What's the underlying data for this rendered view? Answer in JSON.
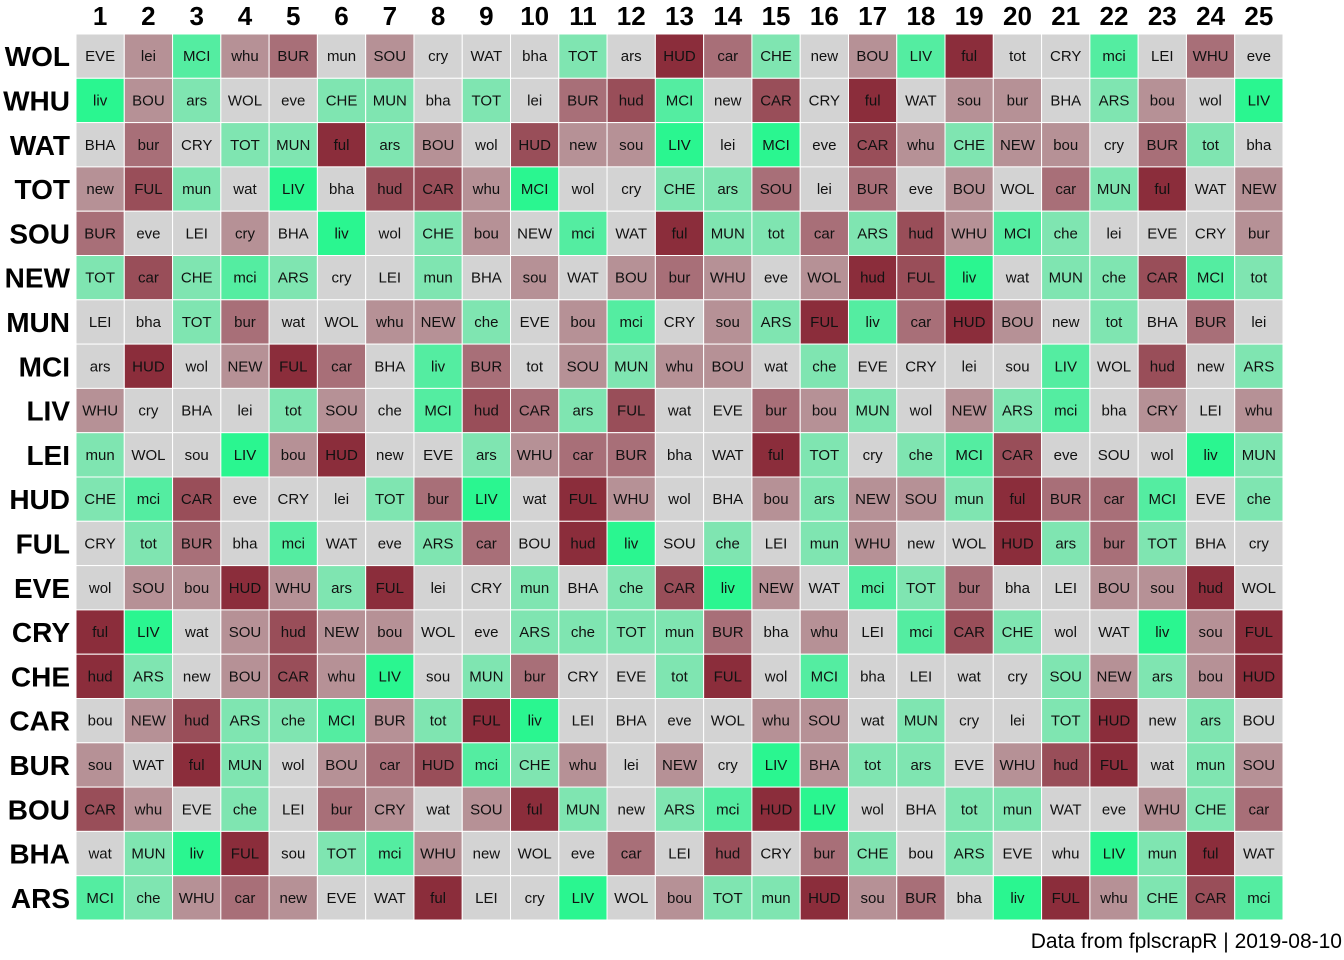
{
  "chart_data": {
    "type": "heatmap",
    "columns": [
      "1",
      "2",
      "3",
      "4",
      "5",
      "6",
      "7",
      "8",
      "9",
      "10",
      "11",
      "12",
      "13",
      "14",
      "15",
      "16",
      "17",
      "18",
      "19",
      "20",
      "21",
      "22",
      "23",
      "24",
      "25"
    ],
    "rows": [
      {
        "team": "WOL",
        "fixtures": [
          "EVE",
          "lei",
          "MCI",
          "whu",
          "BUR",
          "mun",
          "SOU",
          "cry",
          "WAT",
          "bha",
          "TOT",
          "ars",
          "HUD",
          "car",
          "CHE",
          "new",
          "BOU",
          "LIV",
          "ful",
          "tot",
          "CRY",
          "mci",
          "LEI",
          "WHU",
          "eve"
        ],
        "difficulty": [
          0,
          -2,
          3,
          -2,
          -3,
          0,
          -2,
          0,
          0,
          0,
          2,
          0,
          -5,
          -3,
          2,
          0,
          -2,
          3,
          -5,
          0,
          0,
          3,
          0,
          -3,
          0
        ]
      },
      {
        "team": "WHU",
        "fixtures": [
          "liv",
          "BOU",
          "ars",
          "WOL",
          "eve",
          "CHE",
          "MUN",
          "bha",
          "TOT",
          "lei",
          "BUR",
          "hud",
          "MCI",
          "new",
          "CAR",
          "CRY",
          "ful",
          "WAT",
          "sou",
          "bur",
          "BHA",
          "ARS",
          "bou",
          "wol",
          "LIV"
        ],
        "difficulty": [
          4,
          -2,
          2,
          0,
          0,
          2,
          2,
          0,
          2,
          0,
          -3,
          -4,
          3,
          0,
          -4,
          0,
          -5,
          0,
          -2,
          -2,
          0,
          2,
          -2,
          0,
          4
        ]
      },
      {
        "team": "WAT",
        "fixtures": [
          "BHA",
          "bur",
          "CRY",
          "TOT",
          "MUN",
          "ful",
          "ars",
          "BOU",
          "wol",
          "HUD",
          "new",
          "sou",
          "LIV",
          "lei",
          "MCI",
          "eve",
          "CAR",
          "whu",
          "CHE",
          "NEW",
          "bou",
          "cry",
          "BUR",
          "tot",
          "bha"
        ],
        "difficulty": [
          0,
          -3,
          0,
          2,
          2,
          -5,
          2,
          -2,
          0,
          -4,
          -2,
          -2,
          4,
          0,
          4,
          0,
          -4,
          -2,
          2,
          -2,
          -2,
          0,
          -3,
          2,
          0
        ]
      },
      {
        "team": "TOT",
        "fixtures": [
          "new",
          "FUL",
          "mun",
          "wat",
          "LIV",
          "bha",
          "hud",
          "CAR",
          "whu",
          "MCI",
          "wol",
          "cry",
          "CHE",
          "ars",
          "SOU",
          "lei",
          "BUR",
          "eve",
          "BOU",
          "WOL",
          "car",
          "MUN",
          "ful",
          "WAT",
          "NEW"
        ],
        "difficulty": [
          -2,
          -4,
          2,
          0,
          4,
          0,
          -4,
          -4,
          -2,
          4,
          0,
          0,
          2,
          2,
          -3,
          0,
          -3,
          0,
          -2,
          0,
          -3,
          2,
          -5,
          0,
          -2
        ]
      },
      {
        "team": "SOU",
        "fixtures": [
          "BUR",
          "eve",
          "LEI",
          "cry",
          "BHA",
          "liv",
          "wol",
          "CHE",
          "bou",
          "NEW",
          "mci",
          "WAT",
          "ful",
          "MUN",
          "tot",
          "car",
          "ARS",
          "hud",
          "WHU",
          "MCI",
          "che",
          "lei",
          "EVE",
          "CRY",
          "bur"
        ],
        "difficulty": [
          -3,
          0,
          0,
          -2,
          0,
          4,
          0,
          2,
          -2,
          0,
          3,
          0,
          -5,
          2,
          2,
          -3,
          2,
          -4,
          -2,
          3,
          2,
          0,
          0,
          0,
          -2
        ]
      },
      {
        "team": "NEW",
        "fixtures": [
          "TOT",
          "car",
          "CHE",
          "mci",
          "ARS",
          "cry",
          "LEI",
          "mun",
          "BHA",
          "sou",
          "WAT",
          "BOU",
          "bur",
          "WHU",
          "eve",
          "WOL",
          "hud",
          "FUL",
          "liv",
          "wat",
          "MUN",
          "che",
          "CAR",
          "MCI",
          "tot"
        ],
        "difficulty": [
          2,
          -4,
          2,
          3,
          2,
          0,
          0,
          2,
          0,
          -2,
          0,
          -2,
          -3,
          -2,
          0,
          -2,
          -5,
          -4,
          4,
          0,
          2,
          2,
          -4,
          3,
          2
        ]
      },
      {
        "team": "MUN",
        "fixtures": [
          "LEI",
          "bha",
          "TOT",
          "bur",
          "wat",
          "WOL",
          "whu",
          "NEW",
          "che",
          "EVE",
          "bou",
          "mci",
          "CRY",
          "sou",
          "ARS",
          "FUL",
          "liv",
          "car",
          "HUD",
          "BOU",
          "new",
          "tot",
          "BHA",
          "BUR",
          "lei"
        ],
        "difficulty": [
          0,
          0,
          2,
          -3,
          0,
          0,
          -2,
          -2,
          2,
          0,
          -2,
          3,
          0,
          -2,
          2,
          -5,
          3,
          -3,
          -5,
          -2,
          0,
          2,
          0,
          -3,
          0
        ]
      },
      {
        "team": "MCI",
        "fixtures": [
          "ars",
          "HUD",
          "wol",
          "NEW",
          "FUL",
          "car",
          "BHA",
          "liv",
          "BUR",
          "tot",
          "SOU",
          "MUN",
          "whu",
          "BOU",
          "wat",
          "che",
          "EVE",
          "CRY",
          "lei",
          "sou",
          "LIV",
          "WOL",
          "hud",
          "new",
          "ARS"
        ],
        "difficulty": [
          0,
          -5,
          0,
          -2,
          -5,
          -3,
          0,
          3,
          -3,
          0,
          -2,
          2,
          -2,
          -2,
          0,
          2,
          0,
          0,
          0,
          0,
          3,
          0,
          -4,
          0,
          2
        ]
      },
      {
        "team": "LIV",
        "fixtures": [
          "WHU",
          "cry",
          "BHA",
          "lei",
          "tot",
          "SOU",
          "che",
          "MCI",
          "hud",
          "CAR",
          "ars",
          "FUL",
          "wat",
          "EVE",
          "bur",
          "bou",
          "MUN",
          "wol",
          "NEW",
          "ARS",
          "mci",
          "bha",
          "CRY",
          "LEI",
          "whu"
        ],
        "difficulty": [
          -2,
          0,
          0,
          0,
          2,
          -2,
          0,
          3,
          -4,
          -3,
          2,
          -4,
          0,
          0,
          -3,
          -2,
          2,
          0,
          -2,
          2,
          3,
          0,
          -2,
          0,
          -2
        ]
      },
      {
        "team": "LEI",
        "fixtures": [
          "mun",
          "WOL",
          "sou",
          "LIV",
          "bou",
          "HUD",
          "new",
          "EVE",
          "ars",
          "WHU",
          "car",
          "BUR",
          "bha",
          "WAT",
          "ful",
          "TOT",
          "cry",
          "che",
          "MCI",
          "CAR",
          "eve",
          "SOU",
          "wol",
          "liv",
          "MUN"
        ],
        "difficulty": [
          2,
          0,
          0,
          4,
          -2,
          -5,
          0,
          0,
          2,
          -2,
          -3,
          -3,
          0,
          0,
          -5,
          2,
          0,
          2,
          3,
          -4,
          0,
          0,
          0,
          4,
          2
        ]
      },
      {
        "team": "HUD",
        "fixtures": [
          "CHE",
          "mci",
          "CAR",
          "eve",
          "CRY",
          "lei",
          "TOT",
          "bur",
          "LIV",
          "wat",
          "FUL",
          "WHU",
          "wol",
          "BHA",
          "bou",
          "ars",
          "NEW",
          "SOU",
          "mun",
          "ful",
          "BUR",
          "car",
          "MCI",
          "EVE",
          "che"
        ],
        "difficulty": [
          2,
          3,
          -4,
          0,
          0,
          0,
          2,
          -3,
          4,
          0,
          -5,
          -2,
          0,
          0,
          -2,
          2,
          -2,
          -2,
          2,
          -5,
          -3,
          -3,
          3,
          0,
          2
        ]
      },
      {
        "team": "FUL",
        "fixtures": [
          "CRY",
          "tot",
          "BUR",
          "bha",
          "mci",
          "WAT",
          "eve",
          "ARS",
          "car",
          "BOU",
          "hud",
          "liv",
          "SOU",
          "che",
          "LEI",
          "mun",
          "WHU",
          "new",
          "WOL",
          "HUD",
          "ars",
          "bur",
          "TOT",
          "BHA",
          "cry"
        ],
        "difficulty": [
          0,
          2,
          -3,
          0,
          3,
          0,
          0,
          2,
          -3,
          0,
          -5,
          4,
          0,
          2,
          0,
          2,
          -2,
          0,
          0,
          -5,
          2,
          -3,
          2,
          0,
          0
        ]
      },
      {
        "team": "EVE",
        "fixtures": [
          "wol",
          "SOU",
          "bou",
          "HUD",
          "WHU",
          "ars",
          "FUL",
          "lei",
          "CRY",
          "mun",
          "BHA",
          "che",
          "CAR",
          "liv",
          "NEW",
          "WAT",
          "mci",
          "TOT",
          "bur",
          "bha",
          "LEI",
          "BOU",
          "sou",
          "hud",
          "WOL"
        ],
        "difficulty": [
          0,
          -2,
          -2,
          -5,
          -2,
          2,
          -5,
          0,
          0,
          2,
          0,
          2,
          -4,
          4,
          -2,
          0,
          3,
          2,
          -3,
          0,
          0,
          -2,
          -2,
          -5,
          0
        ]
      },
      {
        "team": "CRY",
        "fixtures": [
          "ful",
          "LIV",
          "wat",
          "SOU",
          "hud",
          "NEW",
          "bou",
          "WOL",
          "eve",
          "ARS",
          "che",
          "TOT",
          "mun",
          "BUR",
          "bha",
          "whu",
          "LEI",
          "mci",
          "CAR",
          "CHE",
          "wol",
          "WAT",
          "liv",
          "sou",
          "FUL"
        ],
        "difficulty": [
          -5,
          4,
          0,
          -2,
          -4,
          -2,
          -2,
          0,
          0,
          2,
          2,
          2,
          2,
          -3,
          0,
          -2,
          0,
          3,
          -4,
          2,
          0,
          0,
          4,
          -2,
          -5
        ]
      },
      {
        "team": "CHE",
        "fixtures": [
          "hud",
          "ARS",
          "new",
          "BOU",
          "CAR",
          "whu",
          "LIV",
          "sou",
          "MUN",
          "bur",
          "CRY",
          "EVE",
          "tot",
          "FUL",
          "wol",
          "MCI",
          "bha",
          "LEI",
          "wat",
          "cry",
          "SOU",
          "NEW",
          "ars",
          "bou",
          "HUD"
        ],
        "difficulty": [
          -5,
          2,
          0,
          -2,
          -4,
          -2,
          4,
          0,
          2,
          -3,
          0,
          0,
          2,
          -5,
          0,
          3,
          0,
          0,
          0,
          0,
          2,
          -2,
          2,
          -2,
          -5
        ]
      },
      {
        "team": "CAR",
        "fixtures": [
          "bou",
          "NEW",
          "hud",
          "ARS",
          "che",
          "MCI",
          "BUR",
          "tot",
          "FUL",
          "liv",
          "LEI",
          "BHA",
          "eve",
          "WOL",
          "whu",
          "SOU",
          "wat",
          "MUN",
          "cry",
          "lei",
          "TOT",
          "HUD",
          "new",
          "ars",
          "BOU"
        ],
        "difficulty": [
          0,
          -2,
          -4,
          2,
          2,
          3,
          -2,
          2,
          -5,
          4,
          0,
          0,
          0,
          0,
          -2,
          -2,
          0,
          2,
          0,
          0,
          2,
          -5,
          0,
          2,
          0
        ]
      },
      {
        "team": "BUR",
        "fixtures": [
          "sou",
          "WAT",
          "ful",
          "MUN",
          "wol",
          "BOU",
          "car",
          "HUD",
          "mci",
          "CHE",
          "whu",
          "lei",
          "NEW",
          "cry",
          "LIV",
          "BHA",
          "tot",
          "ars",
          "EVE",
          "WHU",
          "hud",
          "FUL",
          "wat",
          "mun",
          "SOU"
        ],
        "difficulty": [
          -2,
          0,
          -5,
          2,
          0,
          -2,
          -3,
          -4,
          3,
          2,
          -2,
          0,
          -2,
          0,
          4,
          -2,
          2,
          2,
          0,
          -2,
          -4,
          -5,
          0,
          2,
          -2
        ]
      },
      {
        "team": "BOU",
        "fixtures": [
          "CAR",
          "whu",
          "EVE",
          "che",
          "LEI",
          "bur",
          "CRY",
          "wat",
          "SOU",
          "ful",
          "MUN",
          "new",
          "ARS",
          "mci",
          "HUD",
          "LIV",
          "wol",
          "BHA",
          "tot",
          "mun",
          "WAT",
          "eve",
          "WHU",
          "CHE",
          "car"
        ],
        "difficulty": [
          -4,
          -2,
          0,
          2,
          0,
          -3,
          -2,
          0,
          -2,
          -5,
          2,
          0,
          2,
          3,
          -5,
          4,
          0,
          0,
          2,
          2,
          0,
          0,
          -2,
          2,
          -3
        ]
      },
      {
        "team": "BHA",
        "fixtures": [
          "wat",
          "MUN",
          "liv",
          "FUL",
          "sou",
          "TOT",
          "mci",
          "WHU",
          "new",
          "WOL",
          "eve",
          "car",
          "LEI",
          "hud",
          "CRY",
          "bur",
          "CHE",
          "bou",
          "ARS",
          "EVE",
          "whu",
          "LIV",
          "mun",
          "ful",
          "WAT"
        ],
        "difficulty": [
          0,
          2,
          4,
          -5,
          0,
          2,
          3,
          -2,
          0,
          0,
          0,
          -3,
          0,
          -4,
          0,
          -3,
          2,
          0,
          2,
          0,
          0,
          4,
          2,
          -5,
          0
        ]
      },
      {
        "team": "ARS",
        "fixtures": [
          "MCI",
          "che",
          "WHU",
          "car",
          "new",
          "EVE",
          "WAT",
          "ful",
          "LEI",
          "cry",
          "LIV",
          "WOL",
          "bou",
          "TOT",
          "mun",
          "HUD",
          "sou",
          "BUR",
          "bha",
          "liv",
          "FUL",
          "whu",
          "CHE",
          "CAR",
          "mci"
        ],
        "difficulty": [
          3,
          2,
          -2,
          -3,
          -2,
          0,
          0,
          -5,
          0,
          0,
          4,
          0,
          -2,
          2,
          2,
          -5,
          -2,
          -3,
          0,
          4,
          -5,
          -2,
          2,
          -4,
          3
        ]
      }
    ],
    "colors": {
      "easy": "#00FF7F",
      "neutral": "#D3D3D3",
      "hard": "#8B2D3B"
    },
    "caption": "Data from fplscrapR | 2019-08-10"
  }
}
